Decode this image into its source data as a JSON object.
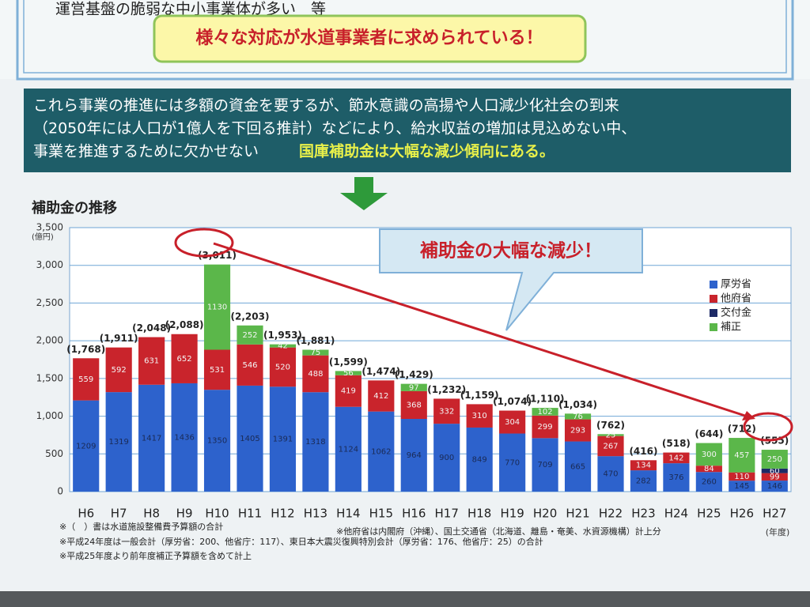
{
  "header": {
    "top_line": "運営基盤の脆弱な中小事業体が多い　等",
    "highlight_box": "様々な対応が水道事業者に求められている！",
    "banner_lines": [
      "これら事業の推進には多額の資金を要するが、節水意識の高揚や人口減少化社会の到来",
      "（2050年には人口が1億人を下回る推計）などにより、給水収益の増加は見込めない中、",
      "事業を推進するために欠かせない"
    ],
    "banner_emphasis": "国庫補助金は大幅な減少傾向にある。"
  },
  "chart_data": {
    "type": "stacked_bar",
    "title": "補助金の推移",
    "y_unit": "(億円)",
    "x_unit": "(年度)",
    "callout": "補助金の大幅な減少！",
    "categories": [
      "H6",
      "H7",
      "H8",
      "H9",
      "H10",
      "H11",
      "H12",
      "H13",
      "H14",
      "H15",
      "H16",
      "H17",
      "H18",
      "H19",
      "H20",
      "H21",
      "H22",
      "H23",
      "H24",
      "H25",
      "H26",
      "H27"
    ],
    "series": [
      {
        "name": "厚労省",
        "color": "#2d62cc",
        "values": [
          1209,
          1319,
          1417,
          1436,
          1350,
          1405,
          1391,
          1318,
          1124,
          1062,
          964,
          900,
          849,
          770,
          709,
          665,
          470,
          282,
          376,
          260,
          145,
          146
        ]
      },
      {
        "name": "他府省",
        "color": "#c9242c",
        "values": [
          559,
          592,
          631,
          652,
          531,
          546,
          520,
          488,
          419,
          412,
          368,
          332,
          310,
          304,
          299,
          293,
          267,
          134,
          142,
          84,
          110,
          99
        ]
      },
      {
        "name": "交付金",
        "color": "#1d2a66",
        "values": [
          null,
          null,
          null,
          null,
          null,
          null,
          null,
          null,
          null,
          null,
          null,
          null,
          null,
          null,
          null,
          null,
          null,
          null,
          null,
          null,
          null,
          60
        ]
      },
      {
        "name": "補正",
        "color": "#5bb74a",
        "values": [
          null,
          null,
          null,
          null,
          1130,
          252,
          42,
          75,
          56,
          null,
          97,
          null,
          null,
          null,
          102,
          76,
          25,
          null,
          null,
          300,
          457,
          250
        ]
      }
    ],
    "totals": {
      "values": [
        1768,
        1911,
        2048,
        2088,
        3011,
        2203,
        1953,
        1881,
        1599,
        1474,
        1429,
        1232,
        1159,
        1074,
        1110,
        1034,
        762,
        416,
        518,
        644,
        712,
        555
      ],
      "value_labels": [
        "(1,768)",
        "(1,911)",
        "(2,048)",
        "(2,088)",
        "(3,011)",
        "(2,203)",
        "(1,953)",
        "(1,881)",
        "(1,599)",
        "(1,474)",
        "(1,429)",
        "(1,232)",
        "(1,159)",
        "(1,074)",
        "(1,110)",
        "(1,034)",
        "(762)",
        "(416)",
        "(518)",
        "(644)",
        "(712)",
        "(555)"
      ]
    },
    "ylim": [
      0,
      3500
    ],
    "yticks": [
      0,
      500,
      {
        "value": 1000,
        "label": "1,000"
      },
      {
        "value": 1500,
        "label": "1,500"
      },
      {
        "value": 2000,
        "label": "2,000"
      },
      {
        "value": 2500,
        "label": "2,500"
      },
      {
        "value": 3000,
        "label": "3,000"
      },
      {
        "value": 3500,
        "label": "3,500"
      }
    ],
    "grid": true,
    "legend": "right"
  },
  "footnotes": {
    "left": [
      "※（　）書は水道施設整備費予算額の合計",
      "※平成24年度は一般会計（厚労省：200、他省庁：117）、東日本大震災復興特別会計（厚労省：176、他省庁：25）の合計",
      "※平成25年度より前年度補正予算額を含めて計上"
    ],
    "right": "※他府省は内閣府（沖縄）、国土交通省（北海道、離島・奄美、水資源機構）計上分"
  }
}
